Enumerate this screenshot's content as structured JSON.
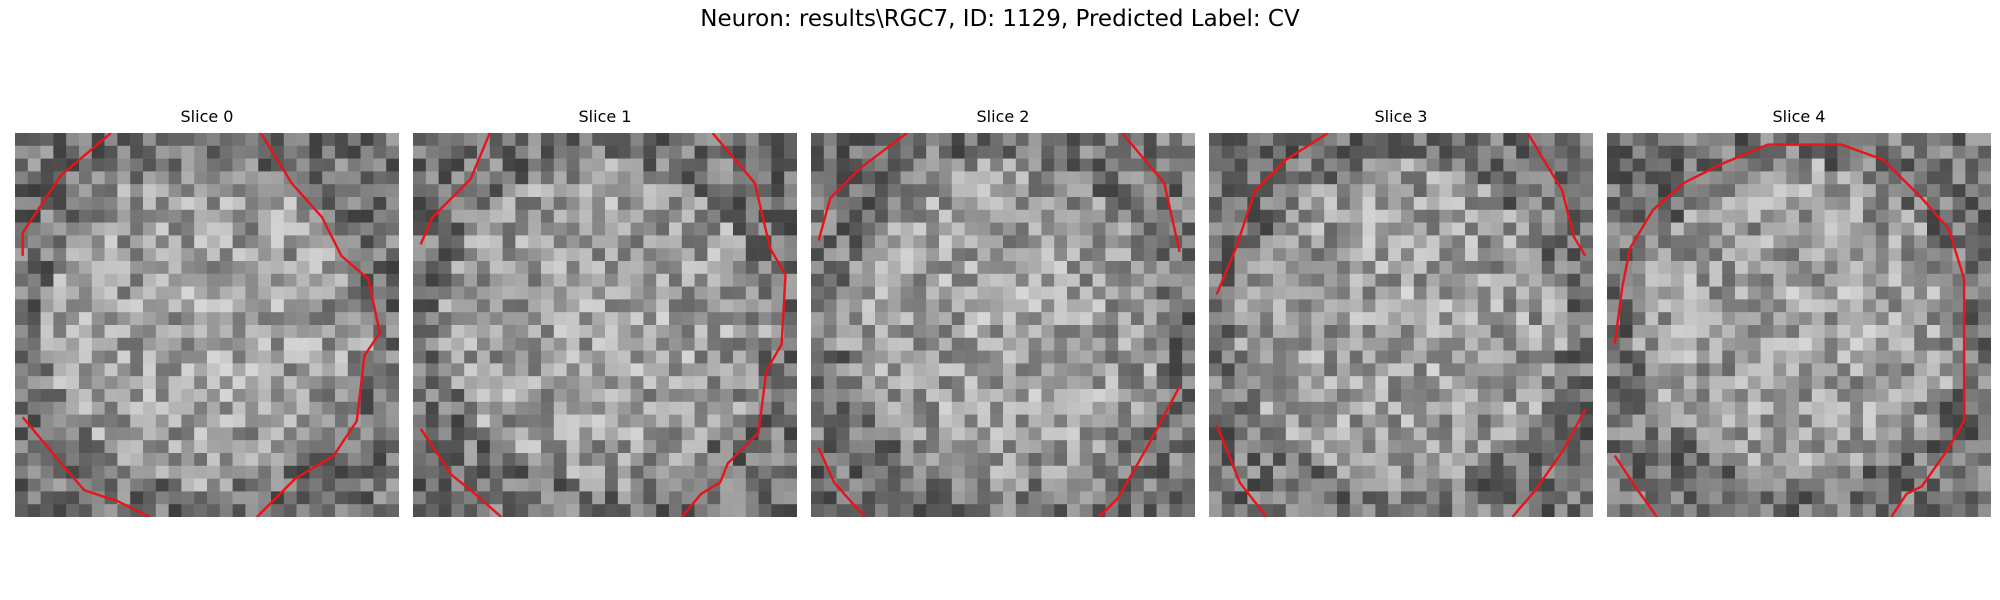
{
  "figure": {
    "title": "Neuron: results\\RGC7, ID: 1129, Predicted Label: CV"
  },
  "panels": [
    {
      "title": "Slice 0",
      "seed": 11,
      "contours": [
        [
          [
            0.25,
            0
          ],
          [
            0.12,
            0.11
          ],
          [
            0.02,
            0.26
          ],
          [
            0.02,
            0.32
          ]
        ],
        [
          [
            0.64,
            0
          ],
          [
            0.72,
            0.13
          ],
          [
            0.8,
            0.22
          ],
          [
            0.85,
            0.32
          ],
          [
            0.92,
            0.38
          ],
          [
            0.95,
            0.52
          ],
          [
            0.91,
            0.58
          ],
          [
            0.89,
            0.75
          ],
          [
            0.83,
            0.84
          ],
          [
            0.73,
            0.9
          ],
          [
            0.63,
            1
          ]
        ],
        [
          [
            0.02,
            0.74
          ],
          [
            0.12,
            0.86
          ],
          [
            0.18,
            0.93
          ],
          [
            0.27,
            0.96
          ],
          [
            0.35,
            1
          ]
        ]
      ]
    },
    {
      "title": "Slice 1",
      "seed": 23,
      "contours": [
        [
          [
            0.2,
            0
          ],
          [
            0.15,
            0.12
          ],
          [
            0.05,
            0.22
          ],
          [
            0.02,
            0.29
          ]
        ],
        [
          [
            0.78,
            0
          ],
          [
            0.89,
            0.13
          ],
          [
            0.93,
            0.3
          ],
          [
            0.97,
            0.37
          ],
          [
            0.96,
            0.55
          ],
          [
            0.92,
            0.62
          ],
          [
            0.9,
            0.78
          ],
          [
            0.82,
            0.86
          ],
          [
            0.8,
            0.91
          ],
          [
            0.75,
            0.94
          ],
          [
            0.7,
            1
          ]
        ],
        [
          [
            0.02,
            0.77
          ],
          [
            0.1,
            0.89
          ],
          [
            0.15,
            0.93
          ],
          [
            0.23,
            1
          ]
        ]
      ]
    },
    {
      "title": "Slice 2",
      "seed": 37,
      "contours": [
        [
          [
            0.25,
            0
          ],
          [
            0.13,
            0.09
          ],
          [
            0.05,
            0.17
          ],
          [
            0.02,
            0.28
          ]
        ],
        [
          [
            0.81,
            0
          ],
          [
            0.92,
            0.13
          ],
          [
            0.96,
            0.31
          ]
        ],
        [
          [
            0.02,
            0.82
          ],
          [
            0.06,
            0.91
          ],
          [
            0.14,
            1
          ]
        ],
        [
          [
            0.96,
            0.66
          ],
          [
            0.88,
            0.81
          ],
          [
            0.8,
            0.95
          ],
          [
            0.75,
            1
          ]
        ]
      ]
    },
    {
      "title": "Slice 3",
      "seed": 53,
      "contours": [
        [
          [
            0.31,
            0
          ],
          [
            0.2,
            0.07
          ],
          [
            0.12,
            0.15
          ],
          [
            0.07,
            0.3
          ],
          [
            0.02,
            0.42
          ]
        ],
        [
          [
            0.83,
            0
          ],
          [
            0.92,
            0.15
          ],
          [
            0.95,
            0.27
          ],
          [
            0.98,
            0.32
          ]
        ],
        [
          [
            0.02,
            0.76
          ],
          [
            0.08,
            0.91
          ],
          [
            0.15,
            1
          ]
        ],
        [
          [
            0.98,
            0.72
          ],
          [
            0.92,
            0.83
          ],
          [
            0.85,
            0.93
          ],
          [
            0.79,
            1
          ]
        ]
      ]
    },
    {
      "title": "Slice 4",
      "seed": 71,
      "contours": [
        [
          [
            0.02,
            0.55
          ],
          [
            0.04,
            0.4
          ],
          [
            0.06,
            0.3
          ],
          [
            0.12,
            0.2
          ],
          [
            0.2,
            0.13
          ],
          [
            0.3,
            0.08
          ],
          [
            0.42,
            0.03
          ],
          [
            0.61,
            0.03
          ],
          [
            0.72,
            0.07
          ],
          [
            0.82,
            0.17
          ],
          [
            0.89,
            0.25
          ],
          [
            0.93,
            0.38
          ],
          [
            0.93,
            0.75
          ],
          [
            0.89,
            0.82
          ],
          [
            0.82,
            0.92
          ],
          [
            0.78,
            0.94
          ],
          [
            0.74,
            1
          ]
        ],
        [
          [
            0.02,
            0.84
          ],
          [
            0.08,
            0.93
          ],
          [
            0.13,
            1
          ]
        ]
      ]
    }
  ],
  "colors": {
    "contour": "#e8141a"
  }
}
